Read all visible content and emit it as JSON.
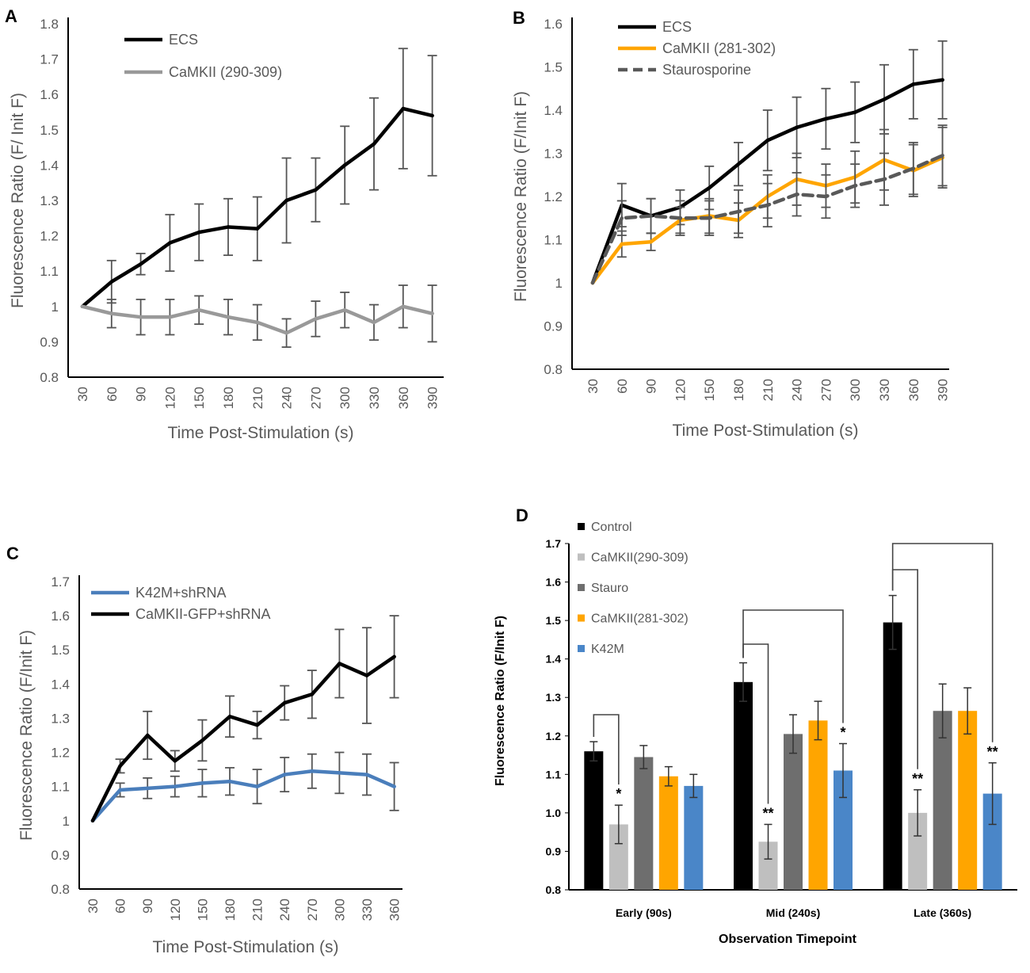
{
  "panels": [
    {
      "letter": "A"
    },
    {
      "letter": "B"
    },
    {
      "letter": "C"
    },
    {
      "letter": "D"
    }
  ],
  "chart_data": [
    {
      "panel": "A",
      "type": "line",
      "title": "",
      "xlabel": "Time Post-Stimulation (s)",
      "ylabel": "Fluorescence Ratio (F/ Init F)",
      "x": [
        30,
        60,
        90,
        120,
        150,
        180,
        210,
        240,
        270,
        300,
        330,
        360,
        390
      ],
      "ylim": [
        0.8,
        1.8
      ],
      "yticks": [
        "0.8",
        "0.9",
        "1",
        "1.1",
        "1.2",
        "1.3",
        "1.4",
        "1.5",
        "1.6",
        "1.7",
        "1.8"
      ],
      "legend_position": "top-left",
      "series": [
        {
          "name": "ECS",
          "color": "#000000",
          "dash": false,
          "values": [
            1.0,
            1.07,
            1.12,
            1.18,
            1.21,
            1.225,
            1.22,
            1.3,
            1.33,
            1.4,
            1.46,
            1.56,
            1.54
          ],
          "errors": [
            0,
            0.06,
            0.03,
            0.08,
            0.08,
            0.08,
            0.09,
            0.12,
            0.09,
            0.11,
            0.13,
            0.17,
            0.17
          ]
        },
        {
          "name": "CaMKII (290-309)",
          "color": "#999999",
          "dash": false,
          "values": [
            1.0,
            0.98,
            0.97,
            0.97,
            0.99,
            0.97,
            0.955,
            0.925,
            0.965,
            0.99,
            0.955,
            1.0,
            0.98
          ],
          "errors": [
            0,
            0.04,
            0.05,
            0.05,
            0.04,
            0.05,
            0.05,
            0.04,
            0.05,
            0.05,
            0.05,
            0.06,
            0.08
          ]
        }
      ]
    },
    {
      "panel": "B",
      "type": "line",
      "title": "",
      "xlabel": "Time Post-Stimulation (s)",
      "ylabel": "Fluorescence Ratio (F/Init F)",
      "x": [
        30,
        60,
        90,
        120,
        150,
        180,
        210,
        240,
        270,
        300,
        330,
        360,
        390
      ],
      "ylim": [
        0.8,
        1.6
      ],
      "yticks": [
        "0.8",
        "0.9",
        "1",
        "1.1",
        "1.2",
        "1.3",
        "1.4",
        "1.5",
        "1.6"
      ],
      "legend_position": "top-left",
      "series": [
        {
          "name": "ECS",
          "color": "#000000",
          "dash": false,
          "values": [
            1.0,
            1.18,
            1.155,
            1.175,
            1.22,
            1.275,
            1.33,
            1.36,
            1.38,
            1.395,
            1.425,
            1.46,
            1.47
          ],
          "errors": [
            0,
            0.05,
            0.04,
            0.04,
            0.05,
            0.05,
            0.07,
            0.07,
            0.07,
            0.07,
            0.08,
            0.08,
            0.09
          ]
        },
        {
          "name": "CaMKII (281-302)",
          "color": "#FFA500",
          "dash": false,
          "values": [
            1.0,
            1.09,
            1.095,
            1.145,
            1.155,
            1.145,
            1.2,
            1.24,
            1.225,
            1.245,
            1.285,
            1.26,
            1.29
          ],
          "errors": [
            0,
            0.03,
            0.02,
            0.03,
            0.04,
            0.04,
            0.05,
            0.06,
            0.05,
            0.06,
            0.07,
            0.06,
            0.07
          ]
        },
        {
          "name": "Staurosporine",
          "color": "#595959",
          "dash": true,
          "values": [
            1.0,
            1.15,
            1.155,
            1.15,
            1.15,
            1.165,
            1.18,
            1.205,
            1.2,
            1.225,
            1.24,
            1.265,
            1.295
          ],
          "errors": [
            0,
            0.04,
            0.04,
            0.04,
            0.04,
            0.05,
            0.05,
            0.05,
            0.05,
            0.05,
            0.06,
            0.06,
            0.07
          ]
        }
      ]
    },
    {
      "panel": "C",
      "type": "line",
      "title": "",
      "xlabel": "Time Post-Stimulation (s)",
      "ylabel": "Fluorescence Ratio (F/Init F)",
      "x": [
        30,
        60,
        90,
        120,
        150,
        180,
        210,
        240,
        270,
        300,
        330,
        360
      ],
      "ylim": [
        0.8,
        1.7
      ],
      "yticks": [
        "0.8",
        "0.9",
        "1",
        "1.1",
        "1.2",
        "1.3",
        "1.4",
        "1.5",
        "1.6",
        "1.7"
      ],
      "legend_position": "top-left",
      "series": [
        {
          "name": "K42M+shRNA",
          "color": "#4A7EBB",
          "dash": false,
          "values": [
            1.0,
            1.09,
            1.095,
            1.1,
            1.11,
            1.115,
            1.1,
            1.135,
            1.145,
            1.14,
            1.135,
            1.1
          ],
          "errors": [
            0,
            0.02,
            0.03,
            0.03,
            0.04,
            0.04,
            0.05,
            0.05,
            0.05,
            0.06,
            0.06,
            0.07
          ]
        },
        {
          "name": "CaMKII-GFP+shRNA",
          "color": "#000000",
          "dash": false,
          "values": [
            1.0,
            1.16,
            1.25,
            1.175,
            1.235,
            1.305,
            1.28,
            1.345,
            1.37,
            1.46,
            1.425,
            1.48
          ],
          "errors": [
            0,
            0.02,
            0.07,
            0.03,
            0.06,
            0.06,
            0.04,
            0.05,
            0.07,
            0.1,
            0.14,
            0.12
          ]
        }
      ]
    },
    {
      "panel": "D",
      "type": "bar",
      "title": "",
      "xlabel": "Observation Timepoint",
      "ylabel": "Fluorescence Ratio (F/Init F)",
      "categories": [
        "Early (90s)",
        "Mid (240s)",
        "Late (360s)"
      ],
      "ylim": [
        0.8,
        1.7
      ],
      "yticks": [
        "0.8",
        "0.9",
        "1.0",
        "1.1",
        "1.2",
        "1.3",
        "1.4",
        "1.5",
        "1.6",
        "1.7"
      ],
      "legend_position": "top-left",
      "series": [
        {
          "name": "Control",
          "color": "#000000",
          "values": [
            1.16,
            1.34,
            1.495
          ],
          "errors": [
            0.025,
            0.05,
            0.07
          ],
          "sig": [
            "",
            "",
            ""
          ]
        },
        {
          "name": "CaMKII(290-309)",
          "color": "#BFBFBF",
          "values": [
            0.97,
            0.925,
            1.0
          ],
          "errors": [
            0.05,
            0.045,
            0.06
          ],
          "sig": [
            "*",
            "**",
            "**"
          ]
        },
        {
          "name": "Stauro",
          "color": "#6E6E6E",
          "values": [
            1.145,
            1.205,
            1.265
          ],
          "errors": [
            0.03,
            0.05,
            0.07
          ],
          "sig": [
            "",
            "",
            ""
          ]
        },
        {
          "name": "CaMKII(281-302)",
          "color": "#FFA500",
          "values": [
            1.095,
            1.24,
            1.265
          ],
          "errors": [
            0.025,
            0.05,
            0.06
          ],
          "sig": [
            "",
            "",
            ""
          ]
        },
        {
          "name": "K42M",
          "color": "#4A86C8",
          "values": [
            1.07,
            1.11,
            1.05
          ],
          "errors": [
            0.03,
            0.07,
            0.08
          ],
          "sig": [
            "",
            "*",
            "**"
          ]
        }
      ]
    }
  ]
}
